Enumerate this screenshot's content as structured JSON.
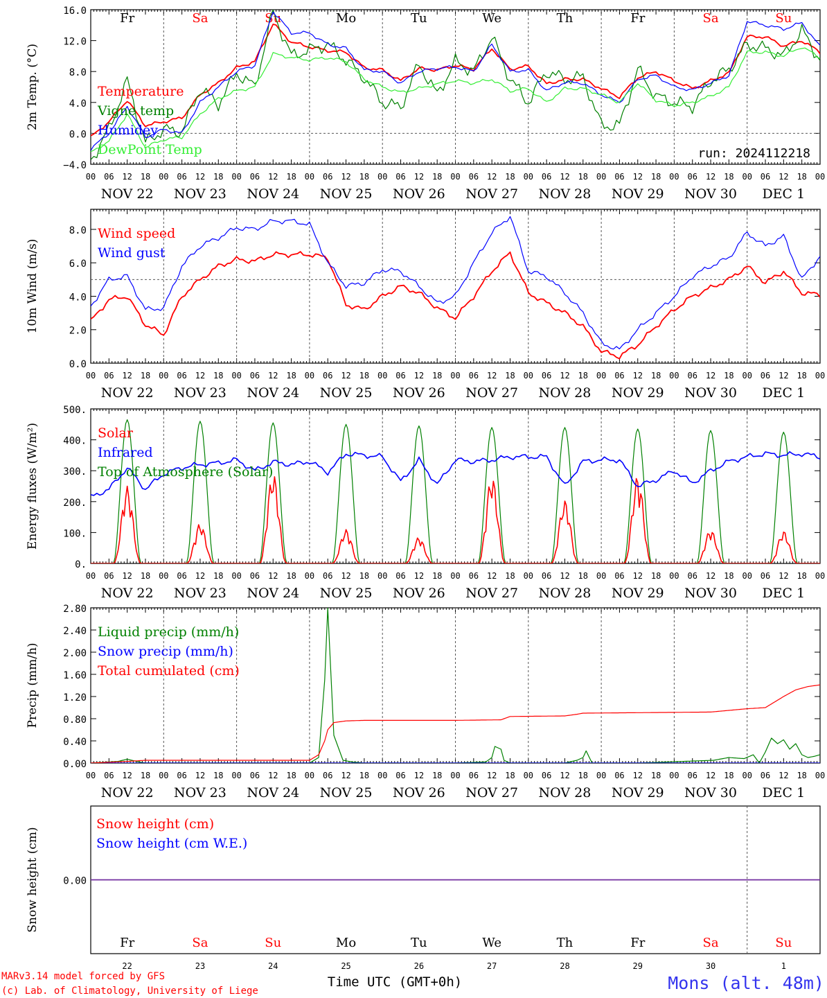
{
  "footer": {
    "credit_line1": "MARv3.14 model forced by GFS",
    "credit_line2": "(c) Lab. of Climatology, University of Liege",
    "time_label": "Time UTC (GMT+0h)",
    "station": "Mons (alt. 48m)"
  },
  "colors": {
    "red": "#ff0000",
    "green": "#008000",
    "blue": "#0000ff",
    "lightgreen": "#33ee33",
    "purple": "#7030a0",
    "weekend": "#ff0000",
    "weekday": "#000000",
    "station": "#3333ee"
  },
  "chart_data": [
    {
      "type": "line",
      "panel": "temperature",
      "ylabel": "2m Temp. (°C)",
      "ylim": [
        -4.0,
        16.0
      ],
      "yticks": [
        "−4.0",
        "0.0",
        "4.0",
        "8.0",
        "12.0",
        "16.0"
      ],
      "ytick_values": [
        -4,
        0,
        4,
        8,
        12,
        16
      ],
      "reference_line": 0,
      "annotation": "run: 2024112218",
      "days": [
        "Fr",
        "Sa",
        "Su",
        "Mo",
        "Tu",
        "We",
        "Th",
        "Fr",
        "Sa",
        "Su"
      ],
      "weekend": [
        false,
        true,
        true,
        false,
        false,
        false,
        false,
        false,
        true,
        true
      ],
      "dates": [
        "NOV 22",
        "NOV 23",
        "NOV 24",
        "NOV 25",
        "NOV 26",
        "NOV 27",
        "NOV 28",
        "NOV 29",
        "NOV 30",
        "DEC  1"
      ],
      "hour_ticks": [
        "00",
        "06",
        "12",
        "18"
      ],
      "x_unit": "hours since NOV 22 00 UTC",
      "series": [
        {
          "name": "Temperature",
          "color": "#ff0000",
          "x": [
            0,
            6,
            12,
            18,
            24,
            30,
            36,
            42,
            48,
            54,
            60,
            66,
            72,
            78,
            84,
            90,
            96,
            102,
            108,
            114,
            120,
            126,
            132,
            138,
            144,
            150,
            156,
            162,
            168,
            174,
            180,
            186,
            192,
            198,
            204,
            210,
            216,
            222,
            228,
            234,
            240
          ],
          "values": [
            -0.5,
            1.5,
            4.3,
            1.0,
            1.5,
            2.0,
            5.0,
            6.5,
            8.5,
            9.3,
            14.2,
            11.8,
            11.2,
            10.7,
            10.5,
            8.5,
            8.2,
            6.8,
            8.4,
            8.2,
            8.8,
            8.3,
            11.0,
            8.3,
            8.7,
            6.4,
            7.0,
            7.0,
            5.8,
            4.7,
            7.2,
            8.0,
            6.8,
            5.8,
            6.8,
            7.8,
            12.5,
            12.5,
            11.3,
            12.0,
            10.5
          ]
        },
        {
          "name": "Vigne temp",
          "color": "#008000",
          "x": [
            0,
            6,
            12,
            18,
            24,
            30,
            36,
            42,
            48,
            54,
            60,
            66,
            72,
            78,
            84,
            90,
            96,
            102,
            108,
            114,
            120,
            126,
            132,
            138,
            144,
            150,
            156,
            162,
            168,
            174,
            180,
            186,
            192,
            198,
            204,
            210,
            216,
            222,
            228,
            234,
            240
          ],
          "values": [
            -3.5,
            0.5,
            6.8,
            -1.2,
            0.5,
            0.2,
            5.8,
            3.8,
            7.8,
            6.0,
            15.8,
            10.0,
            10.8,
            11.5,
            9.5,
            7.2,
            4.0,
            3.4,
            9.0,
            5.0,
            9.3,
            8.0,
            12.5,
            7.0,
            4.0,
            8.0,
            7.0,
            7.3,
            1.0,
            1.0,
            8.3,
            4.8,
            4.0,
            3.5,
            6.8,
            8.3,
            11.5,
            11.0,
            10.0,
            13.3,
            9.5
          ]
        },
        {
          "name": "Humidey",
          "color": "#0000ff",
          "x": [
            0,
            6,
            12,
            18,
            24,
            30,
            36,
            42,
            48,
            54,
            60,
            66,
            72,
            78,
            84,
            90,
            96,
            102,
            108,
            114,
            120,
            126,
            132,
            138,
            144,
            150,
            156,
            162,
            168,
            174,
            180,
            186,
            192,
            198,
            204,
            210,
            216,
            222,
            228,
            234,
            240
          ],
          "values": [
            -2.0,
            0.0,
            3.5,
            -0.5,
            0.5,
            0.0,
            4.0,
            6.0,
            8.0,
            8.8,
            15.8,
            13.0,
            13.0,
            11.5,
            11.0,
            8.2,
            8.0,
            6.5,
            8.0,
            8.4,
            8.6,
            8.0,
            11.5,
            8.0,
            8.2,
            5.5,
            6.6,
            6.5,
            5.0,
            4.0,
            7.0,
            7.5,
            6.0,
            5.6,
            6.5,
            7.5,
            14.5,
            14.0,
            13.5,
            14.3,
            11.2
          ]
        },
        {
          "name": "DewPoint Temp",
          "color": "#33ee33",
          "x": [
            0,
            6,
            12,
            18,
            24,
            30,
            36,
            42,
            48,
            54,
            60,
            66,
            72,
            78,
            84,
            90,
            96,
            102,
            108,
            114,
            120,
            126,
            132,
            138,
            144,
            150,
            156,
            162,
            168,
            174,
            180,
            186,
            192,
            198,
            204,
            210,
            216,
            222,
            228,
            234,
            240
          ],
          "values": [
            -2.5,
            -1.0,
            2.5,
            -1.8,
            -0.8,
            -0.5,
            2.5,
            4.5,
            5.5,
            6.0,
            10.3,
            9.8,
            9.5,
            9.8,
            9.3,
            7.0,
            6.0,
            5.3,
            5.8,
            6.4,
            6.8,
            6.5,
            7.0,
            5.5,
            5.8,
            4.0,
            5.8,
            5.8,
            5.0,
            4.0,
            6.5,
            4.3,
            3.6,
            4.0,
            4.8,
            6.0,
            10.5,
            10.5,
            10.0,
            11.2,
            9.8
          ]
        }
      ]
    },
    {
      "type": "line",
      "panel": "wind",
      "ylabel": "10m Wind (m/s)",
      "ylim": [
        0,
        9.2
      ],
      "yticks": [
        "0.0",
        "2.0",
        "4.0",
        "6.0",
        "8.0"
      ],
      "ytick_values": [
        0,
        2,
        4,
        6,
        8
      ],
      "reference_line": 5,
      "dates": [
        "NOV 22",
        "NOV 23",
        "NOV 24",
        "NOV 25",
        "NOV 26",
        "NOV 27",
        "NOV 28",
        "NOV 29",
        "NOV 30",
        "DEC  1"
      ],
      "hour_ticks": [
        "00",
        "06",
        "12",
        "18"
      ],
      "x_unit": "hours since NOV 22 00 UTC",
      "series": [
        {
          "name": "Wind speed",
          "color": "#ff0000",
          "x": [
            0,
            6,
            12,
            18,
            24,
            30,
            36,
            42,
            48,
            54,
            60,
            66,
            72,
            78,
            84,
            90,
            96,
            102,
            108,
            114,
            120,
            126,
            132,
            138,
            144,
            150,
            156,
            162,
            168,
            174,
            180,
            186,
            192,
            198,
            204,
            210,
            216,
            222,
            228,
            234,
            240
          ],
          "values": [
            2.5,
            3.8,
            4.0,
            2.3,
            1.7,
            4.0,
            5.0,
            5.8,
            6.2,
            6.1,
            6.5,
            6.5,
            6.5,
            6.3,
            3.5,
            3.2,
            4.0,
            4.6,
            4.2,
            3.3,
            2.7,
            4.0,
            5.5,
            6.6,
            4.2,
            3.6,
            3.0,
            2.2,
            0.7,
            0.4,
            1.1,
            2.2,
            3.2,
            4.0,
            4.5,
            5.0,
            5.8,
            4.8,
            5.5,
            4.2,
            4.1
          ]
        },
        {
          "name": "Wind gust",
          "color": "#0000ff",
          "x": [
            0,
            6,
            12,
            18,
            24,
            30,
            36,
            42,
            48,
            54,
            60,
            66,
            72,
            78,
            84,
            90,
            96,
            102,
            108,
            114,
            120,
            126,
            132,
            138,
            144,
            150,
            156,
            162,
            168,
            174,
            180,
            186,
            192,
            198,
            204,
            210,
            216,
            222,
            228,
            234,
            240
          ],
          "values": [
            3.4,
            5.0,
            5.2,
            3.2,
            3.3,
            5.8,
            7.0,
            7.5,
            8.1,
            8.0,
            8.5,
            8.5,
            8.3,
            6.0,
            4.6,
            4.8,
            5.6,
            5.5,
            4.6,
            3.6,
            4.0,
            6.0,
            7.8,
            8.8,
            5.5,
            5.2,
            4.2,
            3.0,
            1.2,
            0.8,
            2.0,
            3.0,
            4.0,
            5.2,
            5.8,
            6.3,
            7.8,
            7.0,
            7.6,
            5.0,
            6.4
          ]
        }
      ]
    },
    {
      "type": "line",
      "panel": "energy",
      "ylabel": "Energy fluxes (W/m²)",
      "ylim": [
        0,
        500
      ],
      "yticks": [
        "0.",
        "100.",
        "200.",
        "300.",
        "400.",
        "500."
      ],
      "ytick_values": [
        0,
        100,
        200,
        300,
        400,
        500
      ],
      "dates": [
        "NOV 22",
        "NOV 23",
        "NOV 24",
        "NOV 25",
        "NOV 26",
        "NOV 27",
        "NOV 28",
        "NOV 29",
        "NOV 30",
        "DEC  1"
      ],
      "hour_ticks": [
        "00",
        "06",
        "12",
        "18"
      ],
      "x_unit": "hours since NOV 22 00 UTC",
      "toa_peaks": [
        465,
        460,
        455,
        450,
        445,
        440,
        440,
        435,
        430,
        425
      ],
      "solar_peaks": [
        250,
        130,
        295,
        110,
        85,
        285,
        205,
        285,
        110,
        105
      ],
      "series": [
        {
          "name": "Solar",
          "color": "#ff0000"
        },
        {
          "name": "Infrared",
          "color": "#0000ff",
          "x": [
            0,
            6,
            12,
            18,
            24,
            30,
            36,
            42,
            48,
            54,
            60,
            66,
            72,
            78,
            84,
            90,
            96,
            102,
            108,
            114,
            120,
            126,
            132,
            138,
            144,
            150,
            156,
            162,
            168,
            174,
            180,
            186,
            192,
            198,
            204,
            210,
            216,
            222,
            228,
            234,
            240
          ],
          "values": [
            215,
            240,
            310,
            240,
            290,
            310,
            320,
            325,
            335,
            300,
            328,
            320,
            330,
            295,
            355,
            350,
            345,
            265,
            335,
            255,
            335,
            330,
            335,
            345,
            345,
            345,
            250,
            330,
            335,
            335,
            250,
            270,
            300,
            260,
            300,
            330,
            345,
            355,
            350,
            355,
            345
          ]
        },
        {
          "name": "Top of Atmosphere (Solar)",
          "color": "#008000"
        }
      ]
    },
    {
      "type": "line",
      "panel": "precip",
      "ylabel": "Precip (mm/h)",
      "ylim": [
        0,
        2.8
      ],
      "yticks": [
        "0.00",
        "0.40",
        "0.80",
        "1.20",
        "1.60",
        "2.00",
        "2.40",
        "2.80"
      ],
      "ytick_values": [
        0,
        0.4,
        0.8,
        1.2,
        1.6,
        2.0,
        2.4,
        2.8
      ],
      "dates": [
        "NOV 22",
        "NOV 23",
        "NOV 24",
        "NOV 25",
        "NOV 26",
        "NOV 27",
        "NOV 28",
        "NOV 29",
        "NOV 30",
        "DEC  1"
      ],
      "hour_ticks": [
        "00",
        "06",
        "12",
        "18"
      ],
      "x_unit": "hours since NOV 22 00 UTC",
      "series": [
        {
          "name": "Liquid precip (mm/h)",
          "color": "#008000",
          "x": [
            0,
            9,
            12,
            15,
            18,
            24,
            60,
            72,
            75,
            77,
            78,
            80,
            83,
            86,
            90,
            120,
            130,
            132,
            133,
            135,
            136,
            138,
            156,
            160,
            162,
            163,
            165,
            180,
            205,
            210,
            215,
            218,
            220,
            222,
            224,
            226,
            228,
            230,
            232,
            234,
            236,
            238,
            240
          ],
          "values": [
            0,
            0.03,
            0.07,
            0.03,
            0,
            0,
            0,
            0,
            0.1,
            1.5,
            2.8,
            0.5,
            0.05,
            0.02,
            0,
            0,
            0.02,
            0.1,
            0.3,
            0.25,
            0.05,
            0,
            0,
            0.05,
            0.1,
            0.22,
            0,
            0,
            0.05,
            0.1,
            0.08,
            0.15,
            0,
            0.2,
            0.45,
            0.35,
            0.42,
            0.25,
            0.35,
            0.15,
            0.1,
            0.12,
            0.15
          ]
        },
        {
          "name": "Snow precip (mm/h)",
          "color": "#0000ff",
          "x": [
            0,
            240
          ],
          "values": [
            0,
            0
          ]
        },
        {
          "name": "Total cumulated (cm)",
          "color": "#ff0000",
          "x": [
            0,
            12,
            18,
            72,
            75,
            77,
            78,
            80,
            84,
            90,
            120,
            135,
            138,
            156,
            160,
            162,
            204,
            216,
            222,
            228,
            232,
            236,
            240
          ],
          "values": [
            0,
            0.03,
            0.05,
            0.05,
            0.15,
            0.4,
            0.6,
            0.73,
            0.76,
            0.77,
            0.77,
            0.78,
            0.84,
            0.85,
            0.88,
            0.9,
            0.92,
            0.98,
            1.0,
            1.2,
            1.32,
            1.38,
            1.41
          ]
        }
      ]
    },
    {
      "type": "line",
      "panel": "snow",
      "ylabel": "Snow height (cm)",
      "ylim": [
        -1,
        1
      ],
      "yticks": [
        "0.00"
      ],
      "ytick_values": [
        0
      ],
      "days": [
        "Fr",
        "Sa",
        "Su",
        "Mo",
        "Tu",
        "We",
        "Th",
        "Fr",
        "Sa",
        "Su"
      ],
      "weekend": [
        false,
        true,
        true,
        false,
        false,
        false,
        false,
        false,
        true,
        true
      ],
      "day_numbers": [
        "22",
        "23",
        "24",
        "25",
        "26",
        "27",
        "28",
        "29",
        "30",
        "1"
      ],
      "x_unit": "hours since NOV 22 00 UTC",
      "series": [
        {
          "name": "Snow height (cm)",
          "color": "#ff0000",
          "x": [
            0,
            240
          ],
          "values": [
            0,
            0
          ]
        },
        {
          "name": "Snow height (cm W.E.)",
          "color": "#0000ff",
          "x": [
            0,
            240
          ],
          "values": [
            0,
            0
          ]
        }
      ]
    }
  ]
}
